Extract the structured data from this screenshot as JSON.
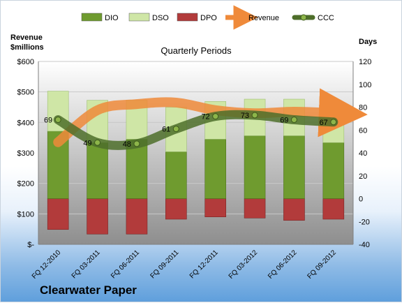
{
  "chart_data": {
    "type": "bar",
    "title": "Quarterly Periods",
    "company": "Clearwater Paper",
    "left_axis_title": "Revenue\n$millions",
    "right_axis_title": "Days",
    "categories": [
      "FQ 12-2010",
      "FQ 03-2011",
      "FQ 06-2011",
      "FQ 09-2011",
      "FQ 12-2011",
      "FQ 03-2012",
      "FQ 06-2012",
      "FQ 09-2012"
    ],
    "left_axis": {
      "min": 0,
      "max": 600,
      "step": 100,
      "tick_labels": [
        "$-",
        "$100",
        "$200",
        "$300",
        "$400",
        "$500",
        "$600"
      ]
    },
    "right_axis": {
      "min": -40,
      "max": 120,
      "step": 20,
      "tick_labels": [
        "-40",
        "-20",
        "0",
        "20",
        "40",
        "60",
        "80",
        "100",
        "120"
      ]
    },
    "legend_position": "top",
    "grid": true,
    "series": [
      {
        "name": "DIO",
        "color": "#6f9b2f",
        "axis": "right",
        "kind": "stacked-bar",
        "values": [
          59,
          49,
          52,
          41,
          52,
          55,
          55,
          49
        ]
      },
      {
        "name": "DSO",
        "color": "#cfe6a6",
        "axis": "right",
        "kind": "stacked-bar",
        "values": [
          35,
          37,
          34,
          39,
          33,
          32,
          32,
          31
        ]
      },
      {
        "name": "DPO",
        "color": "#b23b3b",
        "axis": "right",
        "kind": "negative-bar",
        "values": [
          -27,
          -31,
          -31,
          -18,
          -16,
          -17,
          -19,
          -18
        ]
      },
      {
        "name": "Revenue",
        "color": "#ef8a3a",
        "axis": "left",
        "kind": "line",
        "values": [
          335,
          440,
          460,
          465,
          440,
          430,
          435,
          430
        ]
      },
      {
        "name": "CCC",
        "color": "#4e6e2a",
        "axis": "right",
        "kind": "line",
        "values": [
          69,
          49,
          48,
          61,
          72,
          73,
          69,
          67
        ],
        "data_labels": [
          "69",
          "49",
          "48",
          "61",
          "72",
          "73",
          "69",
          "67"
        ]
      }
    ]
  }
}
